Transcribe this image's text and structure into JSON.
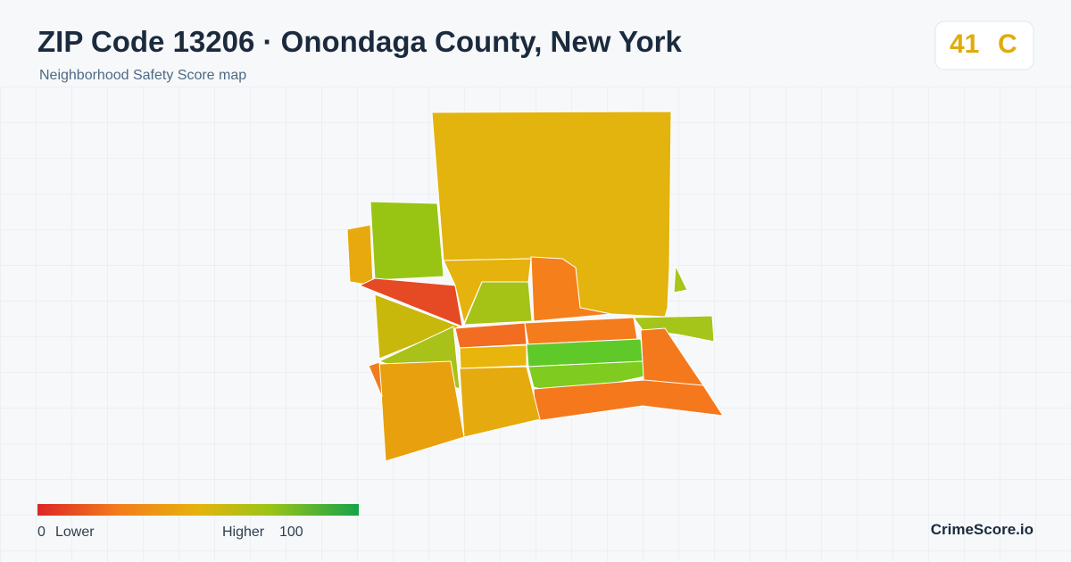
{
  "header": {
    "title": "ZIP Code 13206 · Onondaga County, New York",
    "subtitle": "Neighborhood Safety Score map"
  },
  "score": {
    "value": "41",
    "grade": "C"
  },
  "legend": {
    "min": "0",
    "min_label": "Lower",
    "max_label": "Higher",
    "max": "100"
  },
  "brand": "CrimeScore.io"
}
